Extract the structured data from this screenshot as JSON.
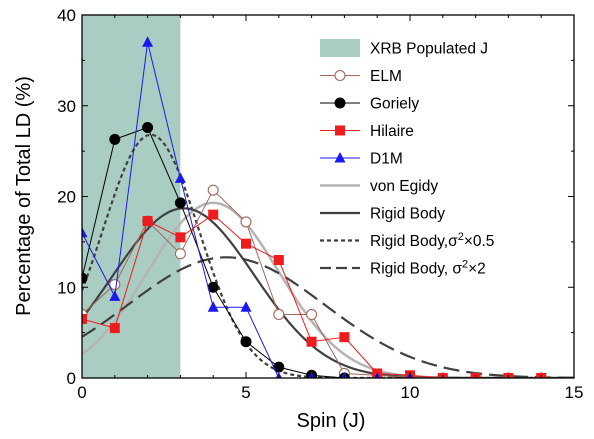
{
  "chart_data": {
    "type": "line",
    "title": "",
    "xlabel": "Spin (J)",
    "ylabel": "Percentage of Total LD (%)",
    "xlim": [
      0,
      15
    ],
    "ylim": [
      0,
      40
    ],
    "xticks": [
      "0",
      "5",
      "10",
      "15"
    ],
    "yticks": [
      "0",
      "10",
      "20",
      "30",
      "40"
    ],
    "grid": false,
    "legend_position": "top-right",
    "xrb_band": {
      "name": "XRB Populated J",
      "x_range": [
        0,
        3
      ],
      "color": "#a9cdc3"
    },
    "series": [
      {
        "name": "ELM",
        "kind": "points",
        "color": "#a0695a",
        "marker": "open-circle",
        "x": [
          0,
          1,
          2,
          3,
          4,
          5,
          6,
          7,
          8,
          9,
          10,
          11,
          12,
          13,
          14
        ],
        "y": [
          7.0,
          10.3,
          17.3,
          13.7,
          20.7,
          17.2,
          7.0,
          7.0,
          0.5,
          0.3,
          0.1,
          0,
          0,
          0,
          0
        ]
      },
      {
        "name": "Goriely",
        "kind": "points",
        "color": "#000000",
        "marker": "filled-circle",
        "x": [
          0,
          1,
          2,
          3,
          4,
          5,
          6,
          7,
          8
        ],
        "y": [
          11.0,
          26.3,
          27.6,
          19.3,
          10.0,
          4.0,
          1.2,
          0.3,
          0
        ]
      },
      {
        "name": "Hilaire",
        "kind": "points",
        "color": "#ee1c1c",
        "marker": "filled-square",
        "x": [
          0,
          1,
          2,
          3,
          4,
          5,
          6,
          7,
          8,
          9,
          10,
          11,
          12,
          13,
          14
        ],
        "y": [
          6.5,
          5.5,
          17.3,
          15.5,
          18.0,
          14.8,
          13.0,
          4.0,
          4.5,
          0.5,
          0.3,
          0,
          0,
          0,
          0
        ]
      },
      {
        "name": "D1M",
        "kind": "points",
        "color": "#1a1aee",
        "marker": "filled-triangle",
        "x": [
          0,
          1,
          2,
          3,
          4,
          5,
          6,
          7,
          8,
          9,
          10
        ],
        "y": [
          16.0,
          9.0,
          37.0,
          22.0,
          7.8,
          7.8,
          0,
          0,
          0,
          0,
          0
        ]
      },
      {
        "name": "von Egidy",
        "kind": "curve",
        "color": "#b4b4b4",
        "dash": "solid",
        "mu": 4.0,
        "sigma": 2.0,
        "peak": 19.3
      },
      {
        "name": "Rigid Body",
        "kind": "curve",
        "color": "#404040",
        "dash": "solid",
        "mu": 3.1,
        "sigma": 2.15,
        "peak": 18.7
      },
      {
        "name": "Rigid Body,σ²×0.5",
        "kind": "curve",
        "color": "#404040",
        "dash": "dotted",
        "mu": 2.1,
        "sigma": 1.47,
        "peak": 26.8
      },
      {
        "name": "Rigid Body, σ²×2",
        "kind": "curve",
        "color": "#404040",
        "dash": "dashed",
        "mu": 4.4,
        "sigma": 3.0,
        "peak": 13.3
      }
    ],
    "legend": [
      {
        "label": "XRB Populated J",
        "symbol": "band"
      },
      {
        "label": "ELM",
        "symbol": "open-circle"
      },
      {
        "label": "Goriely",
        "symbol": "filled-circle"
      },
      {
        "label": "Hilaire",
        "symbol": "filled-square"
      },
      {
        "label": "D1M",
        "symbol": "filled-triangle"
      },
      {
        "label": "von Egidy",
        "symbol": "line"
      },
      {
        "label": "Rigid Body",
        "symbol": "line"
      },
      {
        "label": "Rigid Body,",
        "sup_label": "2",
        "tail_label": "×0.5",
        "math": "σ",
        "symbol": "dotted"
      },
      {
        "label": "Rigid Body, ",
        "sup_label": "2",
        "tail_label": "×2",
        "math": "σ",
        "symbol": "dashed"
      }
    ]
  }
}
